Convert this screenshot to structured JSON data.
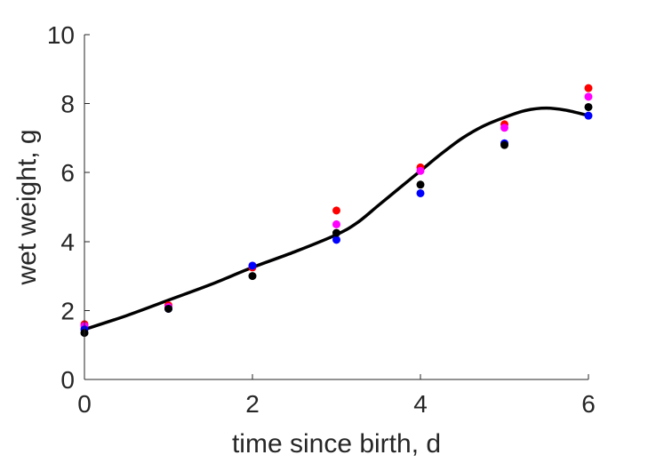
{
  "chart_data": {
    "type": "scatter",
    "xlabel": "time since birth, d",
    "ylabel": "wet weight, g",
    "xlim": [
      0,
      6
    ],
    "ylim": [
      0,
      10
    ],
    "xticks": [
      0,
      2,
      4,
      6
    ],
    "yticks": [
      0,
      2,
      4,
      6,
      8,
      10
    ],
    "grid": false,
    "legend": "none",
    "series": [
      {
        "color": "#ff0000",
        "x": [
          0,
          1,
          2,
          3,
          4,
          5,
          6
        ],
        "y": [
          1.6,
          2.15,
          3.25,
          4.9,
          6.15,
          7.4,
          8.45
        ]
      },
      {
        "color": "#ff00ff",
        "x": [
          0,
          1,
          2,
          3,
          4,
          5,
          6
        ],
        "y": [
          1.55,
          2.1,
          3.3,
          4.5,
          6.05,
          7.3,
          8.2
        ]
      },
      {
        "color": "#0000ff",
        "x": [
          0,
          1,
          2,
          3,
          4,
          5,
          6
        ],
        "y": [
          1.45,
          2.05,
          3.3,
          4.05,
          5.4,
          6.85,
          7.65
        ]
      },
      {
        "color": "#000000",
        "x": [
          0,
          1,
          2,
          3,
          4,
          5,
          6
        ],
        "y": [
          1.35,
          2.05,
          3.0,
          4.25,
          5.65,
          6.8,
          7.9
        ]
      }
    ],
    "fit": {
      "color": "#000000",
      "x": [
        0,
        0.5,
        1,
        1.5,
        2,
        2.5,
        3,
        3.25,
        3.5,
        3.75,
        4,
        4.25,
        4.5,
        4.75,
        5,
        5.25,
        5.5,
        5.75,
        6
      ],
      "y": [
        1.45,
        1.85,
        2.3,
        2.75,
        3.25,
        3.7,
        4.2,
        4.55,
        5.05,
        5.55,
        6.05,
        6.55,
        7.0,
        7.35,
        7.6,
        7.8,
        7.87,
        7.8,
        7.65
      ]
    }
  }
}
